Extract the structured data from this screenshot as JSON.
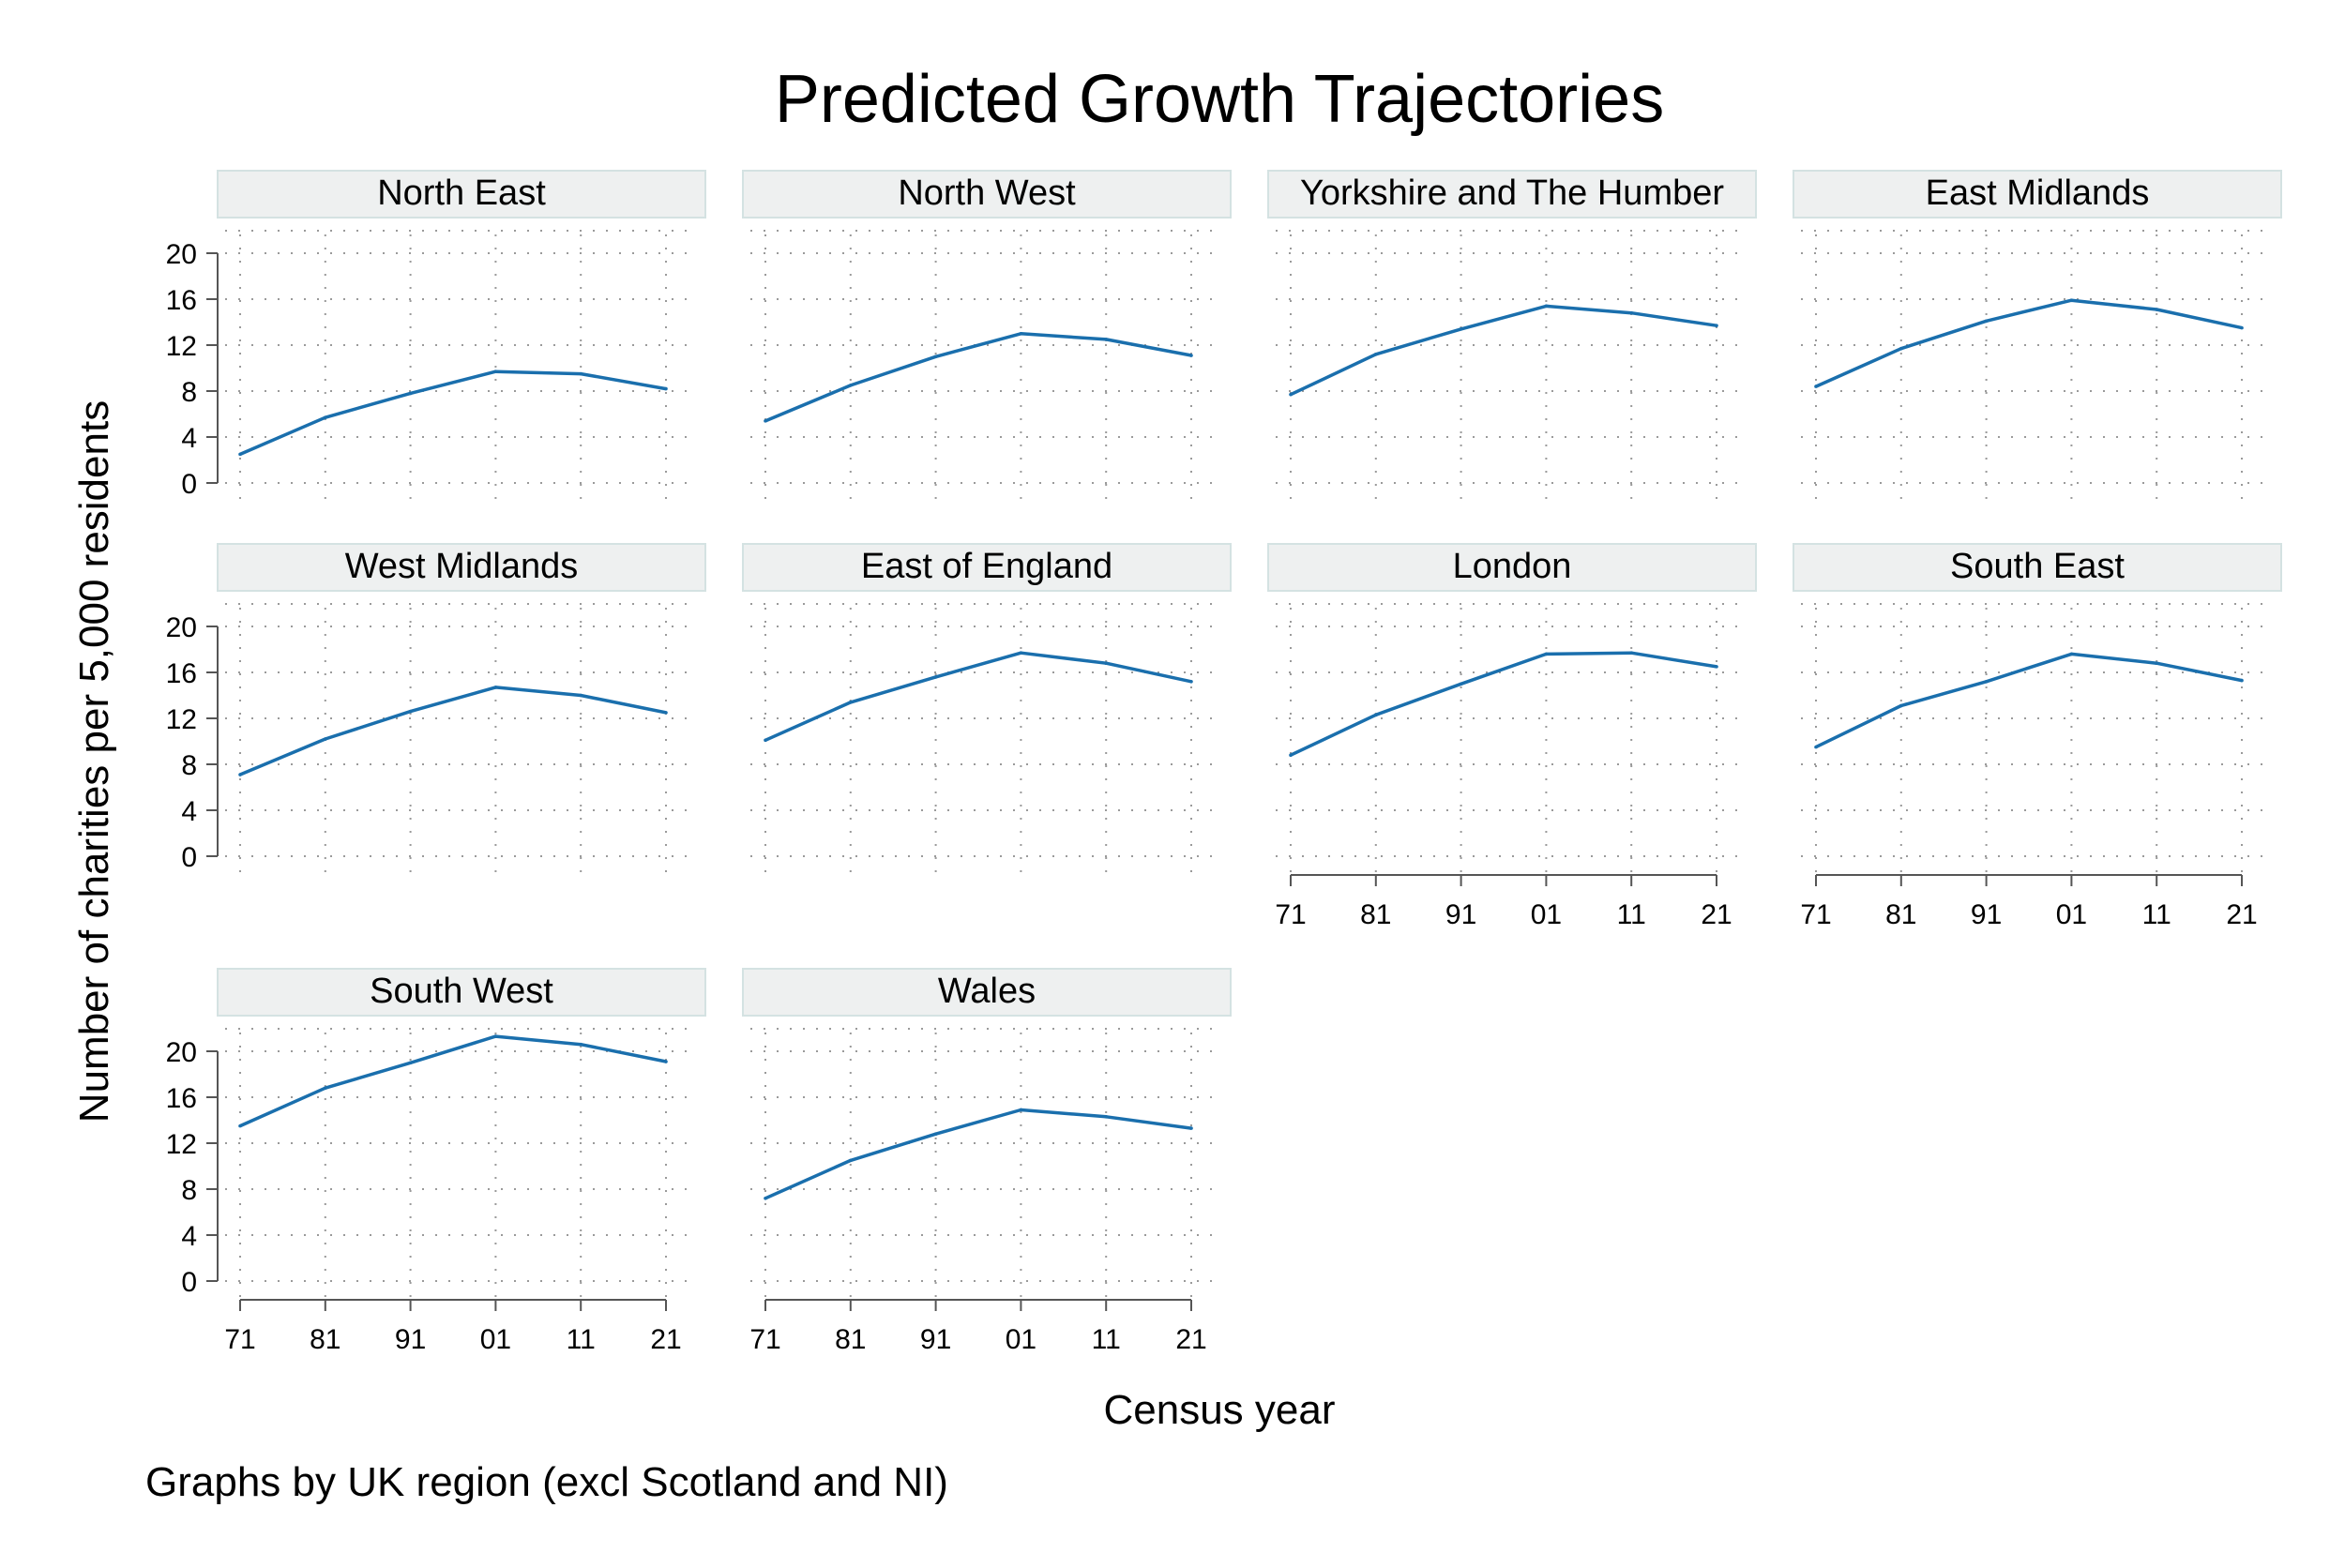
{
  "chart_data": {
    "type": "line",
    "title": "Predicted Growth Trajectories",
    "xlabel": "Census year",
    "ylabel": "Number of charities per 5,000 residents",
    "note": "Graphs by UK region (excl Scotland and NI)",
    "x_ticks": [
      "71",
      "81",
      "91",
      "01",
      "11",
      "21"
    ],
    "y_ticks": [
      0,
      4,
      8,
      12,
      16,
      20
    ],
    "ylim": [
      0,
      20
    ],
    "grid": true,
    "line_color": "#1a6fad",
    "panels": [
      {
        "name": "North East",
        "values": [
          2.5,
          5.7,
          7.8,
          9.7,
          9.5,
          8.2
        ]
      },
      {
        "name": "North West",
        "values": [
          5.4,
          8.5,
          11.0,
          13.0,
          12.5,
          11.1
        ]
      },
      {
        "name": "Yorkshire and The Humber",
        "values": [
          7.7,
          11.2,
          13.4,
          15.4,
          14.8,
          13.7
        ]
      },
      {
        "name": "East Midlands",
        "values": [
          8.4,
          11.7,
          14.1,
          15.9,
          15.1,
          13.5
        ]
      },
      {
        "name": "West Midlands",
        "values": [
          7.1,
          10.2,
          12.6,
          14.7,
          14.0,
          12.5
        ]
      },
      {
        "name": "East of England",
        "values": [
          10.1,
          13.4,
          15.6,
          17.7,
          16.8,
          15.2
        ]
      },
      {
        "name": "London",
        "values": [
          8.8,
          12.3,
          15.0,
          17.6,
          17.7,
          16.5
        ]
      },
      {
        "name": "South East",
        "values": [
          9.5,
          13.1,
          15.2,
          17.6,
          16.8,
          15.3
        ]
      },
      {
        "name": "South West",
        "values": [
          13.5,
          16.8,
          19.0,
          21.3,
          20.6,
          19.1
        ]
      },
      {
        "name": "Wales",
        "values": [
          7.2,
          10.5,
          12.8,
          14.9,
          14.3,
          13.3
        ]
      }
    ]
  }
}
